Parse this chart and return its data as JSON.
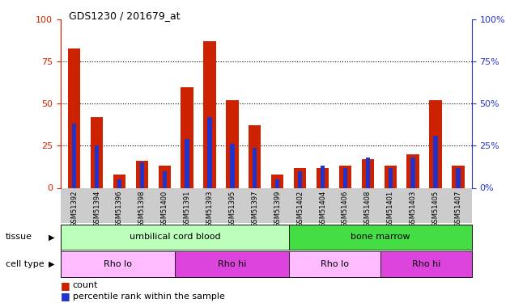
{
  "title": "GDS1230 / 201679_at",
  "samples": [
    "GSM51392",
    "GSM51394",
    "GSM51396",
    "GSM51398",
    "GSM51400",
    "GSM51391",
    "GSM51393",
    "GSM51395",
    "GSM51397",
    "GSM51399",
    "GSM51402",
    "GSM51404",
    "GSM51406",
    "GSM51408",
    "GSM51401",
    "GSM51403",
    "GSM51405",
    "GSM51407"
  ],
  "count_values": [
    83,
    42,
    8,
    16,
    13,
    60,
    87,
    52,
    37,
    8,
    12,
    12,
    13,
    17,
    13,
    20,
    52,
    13
  ],
  "percentile_values": [
    38,
    25,
    5,
    15,
    10,
    29,
    42,
    26,
    24,
    5,
    10,
    13,
    12,
    18,
    12,
    18,
    31,
    12
  ],
  "count_color": "#cc2200",
  "percentile_color": "#2233cc",
  "ylim": [
    0,
    100
  ],
  "yticks": [
    0,
    25,
    50,
    75,
    100
  ],
  "tissue_groups": [
    {
      "label": "umbilical cord blood",
      "start": 0,
      "end": 10,
      "color": "#bbffbb"
    },
    {
      "label": "bone marrow",
      "start": 10,
      "end": 18,
      "color": "#44dd44"
    }
  ],
  "cell_type_groups": [
    {
      "label": "Rho lo",
      "start": 0,
      "end": 5,
      "color": "#ffbbff"
    },
    {
      "label": "Rho hi",
      "start": 5,
      "end": 10,
      "color": "#dd44dd"
    },
    {
      "label": "Rho lo",
      "start": 10,
      "end": 14,
      "color": "#ffbbff"
    },
    {
      "label": "Rho hi",
      "start": 14,
      "end": 18,
      "color": "#dd44dd"
    }
  ],
  "legend_count_label": "count",
  "legend_pct_label": "percentile rank within the sample",
  "tissue_label": "tissue",
  "cell_type_label": "cell type",
  "bg_color": "#ffffff",
  "left_axis_color": "#cc2200",
  "right_axis_color": "#2233cc"
}
